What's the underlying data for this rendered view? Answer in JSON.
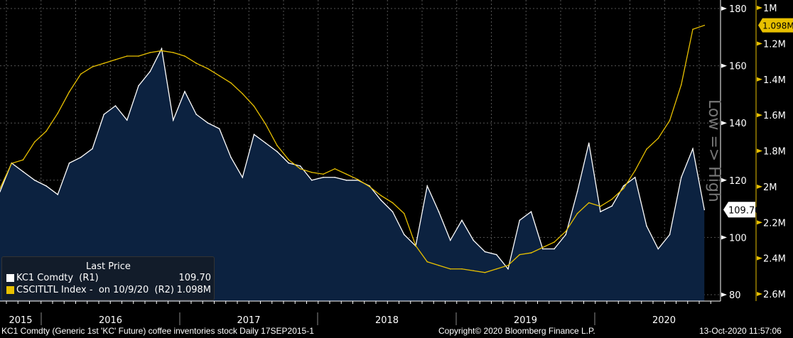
{
  "chart_data": {
    "type": "line",
    "title": "KC1 Comdty (Generic 1st 'KC' Future) coffee inventories stock",
    "x": [
      "Sep-15",
      "Oct-15",
      "Nov-15",
      "Dec-15",
      "Jan-16",
      "Feb-16",
      "Mar-16",
      "Apr-16",
      "May-16",
      "Jun-16",
      "Jul-16",
      "Aug-16",
      "Sep-16",
      "Oct-16",
      "Nov-16",
      "Dec-16",
      "Jan-17",
      "Feb-17",
      "Mar-17",
      "Apr-17",
      "May-17",
      "Jun-17",
      "Jul-17",
      "Aug-17",
      "Sep-17",
      "Oct-17",
      "Nov-17",
      "Dec-17",
      "Jan-18",
      "Feb-18",
      "Mar-18",
      "Apr-18",
      "May-18",
      "Jun-18",
      "Jul-18",
      "Aug-18",
      "Sep-18",
      "Oct-18",
      "Nov-18",
      "Dec-18",
      "Jan-19",
      "Feb-19",
      "Mar-19",
      "Apr-19",
      "May-19",
      "Jun-19",
      "Jul-19",
      "Aug-19",
      "Sep-19",
      "Oct-19",
      "Nov-19",
      "Dec-19",
      "Jan-20",
      "Feb-20",
      "Mar-20",
      "Apr-20",
      "May-20",
      "Jun-20",
      "Jul-20",
      "Aug-20",
      "Sep-20",
      "Oct-20"
    ],
    "series": [
      {
        "name": "KC1 Comdty (R1)",
        "axis": "R1",
        "color": "#ffffff",
        "values": [
          116,
          126,
          123,
          120,
          118,
          115,
          126,
          128,
          131,
          143,
          146,
          141,
          153,
          158,
          166,
          141,
          151,
          143,
          140,
          138,
          128,
          121,
          136,
          133,
          130,
          126,
          125,
          120,
          121,
          121,
          120,
          120,
          118,
          113,
          109,
          101,
          97,
          118,
          109,
          99,
          106,
          99,
          95,
          94,
          89,
          106,
          109,
          96,
          96,
          101,
          116,
          133,
          109,
          111,
          118,
          121,
          104,
          96,
          101,
          121,
          131,
          109.7
        ]
      },
      {
        "name": "CSCITLTL Index - on 10/9/20 (R2)",
        "axis": "R2",
        "color": "#e8c000",
        "values": [
          2.01,
          1.87,
          1.85,
          1.75,
          1.69,
          1.59,
          1.47,
          1.37,
          1.33,
          1.31,
          1.29,
          1.27,
          1.27,
          1.25,
          1.24,
          1.25,
          1.27,
          1.31,
          1.34,
          1.38,
          1.42,
          1.48,
          1.55,
          1.65,
          1.77,
          1.85,
          1.9,
          1.92,
          1.93,
          1.9,
          1.93,
          1.96,
          2.0,
          2.05,
          2.09,
          2.15,
          2.33,
          2.42,
          2.44,
          2.46,
          2.46,
          2.47,
          2.48,
          2.46,
          2.44,
          2.38,
          2.37,
          2.34,
          2.31,
          2.25,
          2.15,
          2.09,
          2.11,
          2.07,
          2.01,
          1.91,
          1.79,
          1.73,
          1.63,
          1.43,
          1.12,
          1.098
        ]
      }
    ],
    "r1_ticks": [
      "80",
      "100",
      "120",
      "140",
      "160",
      "180"
    ],
    "r1_range": [
      80,
      180
    ],
    "r2_ticks": [
      "1M",
      "1.2M",
      "1.4M",
      "1.6M",
      "1.8M",
      "2M",
      "2.2M",
      "2.4M",
      "2.6M"
    ],
    "r2_range": [
      1.0,
      2.6
    ],
    "r2_inverted": true,
    "r2_axis_label": "Low => High",
    "x_labels": [
      "2015",
      "2016",
      "2017",
      "2018",
      "2019",
      "2020"
    ],
    "last_price_r1": "109.70",
    "last_price_r2": "1.098M"
  },
  "legend": {
    "title": "Last Price",
    "items": [
      {
        "label": "KC1 Comdty  (R1)",
        "value": "109.70",
        "color": "#ffffff"
      },
      {
        "label": "CSCITLTL Index -  on 10/9/20  (R2)",
        "value": "1.098M",
        "color": "#e8c000"
      }
    ]
  },
  "footer": {
    "left": "KC1 Comdty (Generic 1st 'KC' Future) coffee inventories stock  Daily 17SEP2015-1",
    "center": "Copyright© 2020 Bloomberg Finance L.P.",
    "right": "13-Oct-2020 11:57:06"
  }
}
